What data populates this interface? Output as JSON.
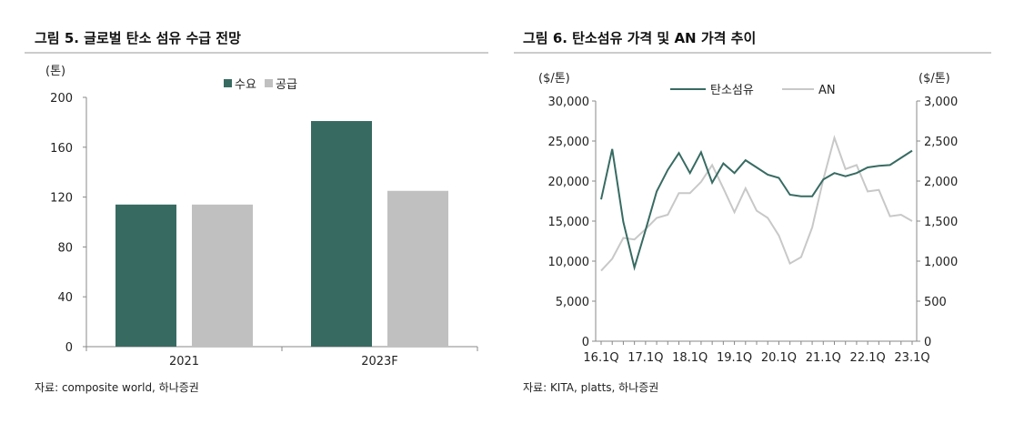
{
  "chart_data": [
    {
      "type": "bar",
      "title": "그림 5. 글로벌 탄소 섬유 수급 전망",
      "ylabel": "(톤)",
      "categories": [
        "2021",
        "2023F"
      ],
      "series": [
        {
          "name": "수요",
          "values": [
            114,
            181
          ],
          "color": "#376b62"
        },
        {
          "name": "공급",
          "values": [
            114,
            125
          ],
          "color": "#c0c0c0"
        }
      ],
      "ylim": [
        0,
        200
      ],
      "yticks": [
        "0",
        "40",
        "80",
        "120",
        "160",
        "200"
      ],
      "legend": "top-center",
      "grid": false,
      "source": "자료: composite world, 하나증권"
    },
    {
      "type": "line",
      "title": "그림 6. 탄소섬유 가격 및 AN 가격 추이",
      "ylabel_left": "($/톤)",
      "ylabel_right": "($/톤)",
      "x": [
        "16.1Q",
        "16.2Q",
        "16.3Q",
        "16.4Q",
        "17.1Q",
        "17.2Q",
        "17.3Q",
        "17.4Q",
        "18.1Q",
        "18.2Q",
        "18.3Q",
        "18.4Q",
        "19.1Q",
        "19.2Q",
        "19.3Q",
        "19.4Q",
        "20.1Q",
        "20.2Q",
        "20.3Q",
        "20.4Q",
        "21.1Q",
        "21.2Q",
        "21.3Q",
        "21.4Q",
        "22.1Q",
        "22.2Q",
        "22.3Q",
        "22.4Q",
        "23.1Q"
      ],
      "xticks": [
        "16.1Q",
        "17.1Q",
        "18.1Q",
        "19.1Q",
        "20.1Q",
        "21.1Q",
        "22.1Q",
        "23.1Q"
      ],
      "series": [
        {
          "name": "탄소섬유",
          "axis": "left",
          "color": "#376b62",
          "values": [
            17700,
            24000,
            14900,
            9200,
            13900,
            18700,
            21400,
            23500,
            21000,
            23600,
            19800,
            22200,
            21000,
            22600,
            21700,
            20800,
            20400,
            18300,
            18100,
            18100,
            20200,
            21000,
            20600,
            21000,
            21700,
            21900,
            22000,
            22900,
            23800
          ]
        },
        {
          "name": "AN",
          "axis": "right",
          "color": "#c8c8c8",
          "values": [
            880,
            1030,
            1290,
            1270,
            1400,
            1540,
            1580,
            1850,
            1850,
            1990,
            2200,
            1910,
            1610,
            1910,
            1630,
            1540,
            1320,
            970,
            1050,
            1420,
            2020,
            2540,
            2150,
            2200,
            1870,
            1890,
            1560,
            1580,
            1500
          ]
        }
      ],
      "ylim_left": [
        0,
        30000
      ],
      "ylim_right": [
        0,
        3000
      ],
      "yticks_left": [
        "0",
        "5,000",
        "10,000",
        "15,000",
        "20,000",
        "25,000",
        "30,000"
      ],
      "yticks_right": [
        "0",
        "500",
        "1,000",
        "1,500",
        "2,000",
        "2,500",
        "3,000"
      ],
      "legend": "top-center",
      "grid": false,
      "source": "자료: KITA, platts, 하나증권"
    }
  ]
}
